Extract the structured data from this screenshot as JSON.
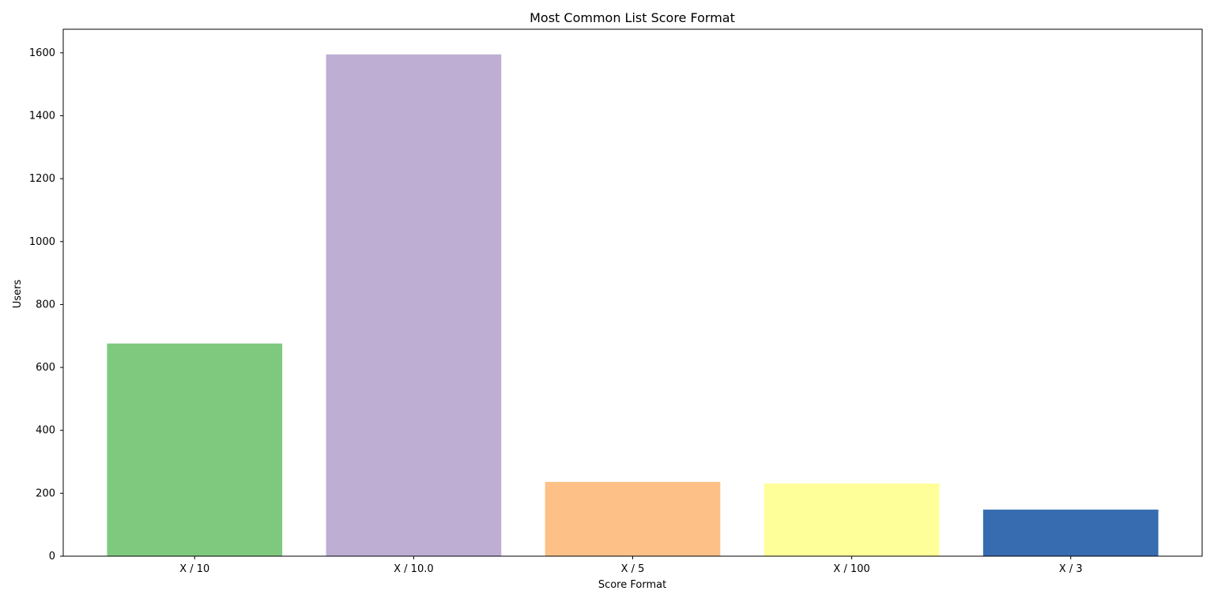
{
  "chart_data": {
    "type": "bar",
    "title": "Most Common List Score Format",
    "xlabel": "Score Format",
    "ylabel": "Users",
    "categories": [
      "X / 10",
      "X / 10.0",
      "X / 5",
      "X / 100",
      "X / 3"
    ],
    "values": [
      676,
      1595,
      236,
      231,
      148
    ],
    "colors": [
      "#7fc97f",
      "#beaed4",
      "#fdc086",
      "#ffff99",
      "#386cb0"
    ],
    "ylim": [
      0,
      1675
    ],
    "yticks": [
      0,
      200,
      400,
      600,
      800,
      1000,
      1200,
      1400,
      1600
    ],
    "grid": false,
    "legend": "none"
  }
}
